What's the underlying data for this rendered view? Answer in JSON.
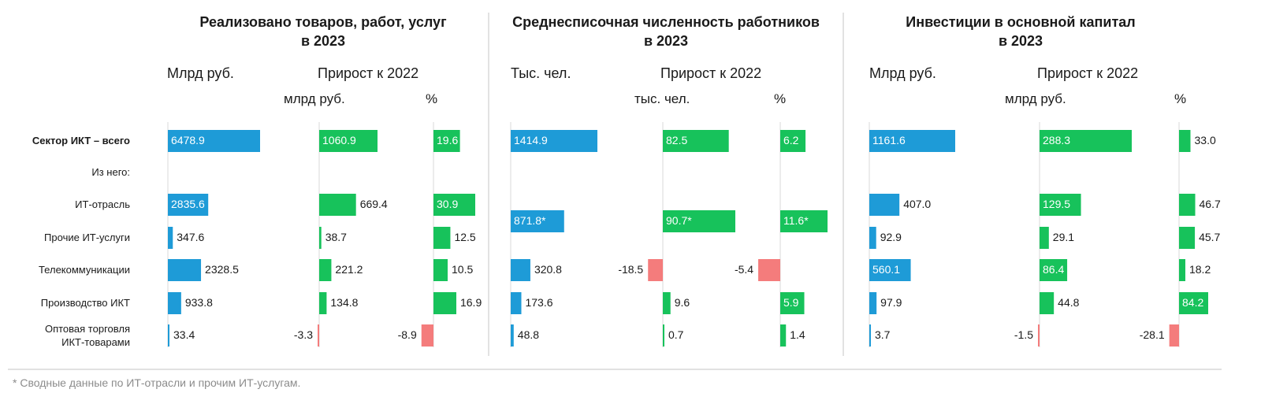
{
  "colors": {
    "blue": "#1e9bd7",
    "green": "#17c25b",
    "red": "#f47c7c"
  },
  "rows": [
    {
      "label": [
        "Сектор ИКТ – всего"
      ],
      "bold": true
    },
    {
      "label": [
        "Из него:"
      ],
      "bold": false
    },
    {
      "label": [
        "ИТ-отрасль"
      ],
      "bold": false
    },
    {
      "label": [
        "Прочие ИТ-услуги"
      ],
      "bold": false
    },
    {
      "label": [
        "Телекоммуникации"
      ],
      "bold": false
    },
    {
      "label": [
        "Производство ИКТ"
      ],
      "bold": false
    },
    {
      "label": [
        "Оптовая торговля",
        "ИКТ-товарами"
      ],
      "bold": false
    }
  ],
  "chart_data": [
    {
      "type": "bar",
      "title": [
        "Реализовано товаров, работ, услуг",
        "в 2023"
      ],
      "growth_label": "Прирост к 2022",
      "columns": [
        {
          "head": "Млрд руб.",
          "sub": "",
          "color": "blue",
          "values": [
            {
              "v": 6478.9,
              "inside": true
            },
            null,
            {
              "v": 2835.6,
              "inside": true
            },
            {
              "v": 347.6,
              "inside": false
            },
            {
              "v": 2328.5,
              "inside": false
            },
            {
              "v": 933.8,
              "inside": false
            },
            {
              "v": 33.4,
              "inside": false
            }
          ],
          "display": [
            "6478.9",
            "",
            "2835.6",
            "347.6",
            "2328.5",
            "933.8",
            "33.4"
          ]
        },
        {
          "head": "",
          "sub": "млрд руб.",
          "color": "green",
          "values": [
            {
              "v": 1060.9,
              "inside": true
            },
            null,
            {
              "v": 669.4,
              "inside": false
            },
            {
              "v": 38.7,
              "inside": false
            },
            {
              "v": 221.2,
              "inside": false
            },
            {
              "v": 134.8,
              "inside": false
            },
            {
              "v": -3.3,
              "inside": false
            }
          ],
          "display": [
            "1060.9",
            "",
            "669.4",
            "38.7",
            "221.2",
            "134.8",
            "-3.3"
          ]
        },
        {
          "head": "",
          "sub": "%",
          "color": "green",
          "values": [
            {
              "v": 19.6,
              "inside": true
            },
            null,
            {
              "v": 30.9,
              "inside": true
            },
            {
              "v": 12.5,
              "inside": false
            },
            {
              "v": 10.5,
              "inside": false
            },
            {
              "v": 16.9,
              "inside": false
            },
            {
              "v": -8.9,
              "inside": false
            }
          ],
          "display": [
            "19.6",
            "",
            "30.9",
            "12.5",
            "10.5",
            "16.9",
            "-8.9"
          ]
        }
      ]
    },
    {
      "type": "bar",
      "title": [
        "Среднесписочная численность работников",
        "в 2023"
      ],
      "growth_label": "Прирост к 2022",
      "columns": [
        {
          "head": "Тыс. чел.",
          "sub": "",
          "color": "blue",
          "values": [
            {
              "v": 1414.9,
              "inside": true
            },
            null,
            null,
            {
              "v": 871.8,
              "inside": true,
              "combined": true
            },
            {
              "v": 320.8,
              "inside": false
            },
            {
              "v": 173.6,
              "inside": false
            },
            {
              "v": 48.8,
              "inside": false
            }
          ],
          "display": [
            "1414.9",
            "",
            "",
            "871.8*",
            "320.8",
            "173.6",
            "48.8"
          ]
        },
        {
          "head": "",
          "sub": "тыс. чел.",
          "color": "green",
          "values": [
            {
              "v": 82.5,
              "inside": true
            },
            null,
            null,
            {
              "v": 90.7,
              "inside": true,
              "combined": true
            },
            {
              "v": -18.5,
              "inside": false
            },
            {
              "v": 9.6,
              "inside": false
            },
            {
              "v": 0.7,
              "inside": false
            }
          ],
          "display": [
            "82.5",
            "",
            "",
            "90.7*",
            "-18.5",
            "9.6",
            "0.7"
          ]
        },
        {
          "head": "",
          "sub": "%",
          "color": "green",
          "values": [
            {
              "v": 6.2,
              "inside": true
            },
            null,
            null,
            {
              "v": 11.6,
              "inside": true,
              "combined": true
            },
            {
              "v": -5.4,
              "inside": false
            },
            {
              "v": 5.9,
              "inside": true
            },
            {
              "v": 1.4,
              "inside": false
            }
          ],
          "display": [
            "6.2",
            "",
            "",
            "11.6*",
            "-5.4",
            "5.9",
            "1.4"
          ]
        }
      ]
    },
    {
      "type": "bar",
      "title": [
        "Инвестиции в основной капитал",
        "в 2023"
      ],
      "growth_label": "Прирост к 2022",
      "columns": [
        {
          "head": "Млрд руб.",
          "sub": "",
          "color": "blue",
          "values": [
            {
              "v": 1161.6,
              "inside": true
            },
            null,
            {
              "v": 407.0,
              "inside": false
            },
            {
              "v": 92.9,
              "inside": false
            },
            {
              "v": 560.1,
              "inside": true
            },
            {
              "v": 97.9,
              "inside": false
            },
            {
              "v": 3.7,
              "inside": false
            }
          ],
          "display": [
            "1161.6",
            "",
            "407.0",
            "92.9",
            "560.1",
            "97.9",
            "3.7"
          ]
        },
        {
          "head": "",
          "sub": "млрд руб.",
          "color": "green",
          "values": [
            {
              "v": 288.3,
              "inside": true
            },
            null,
            {
              "v": 129.5,
              "inside": true
            },
            {
              "v": 29.1,
              "inside": false
            },
            {
              "v": 86.4,
              "inside": true
            },
            {
              "v": 44.8,
              "inside": false
            },
            {
              "v": -1.5,
              "inside": false
            }
          ],
          "display": [
            "288.3",
            "",
            "129.5",
            "29.1",
            "86.4",
            "44.8",
            "-1.5"
          ]
        },
        {
          "head": "",
          "sub": "%",
          "color": "green",
          "values": [
            {
              "v": 33.0,
              "inside": false
            },
            null,
            {
              "v": 46.7,
              "inside": false
            },
            {
              "v": 45.7,
              "inside": false
            },
            {
              "v": 18.2,
              "inside": false
            },
            {
              "v": 84.2,
              "inside": true
            },
            {
              "v": -28.1,
              "inside": false
            }
          ],
          "display": [
            "33.0",
            "",
            "46.7",
            "45.7",
            "18.2",
            "84.2",
            "-28.1"
          ]
        }
      ]
    }
  ],
  "footnote": "* Сводные данные по ИТ-отрасли и прочим ИТ-услугам."
}
